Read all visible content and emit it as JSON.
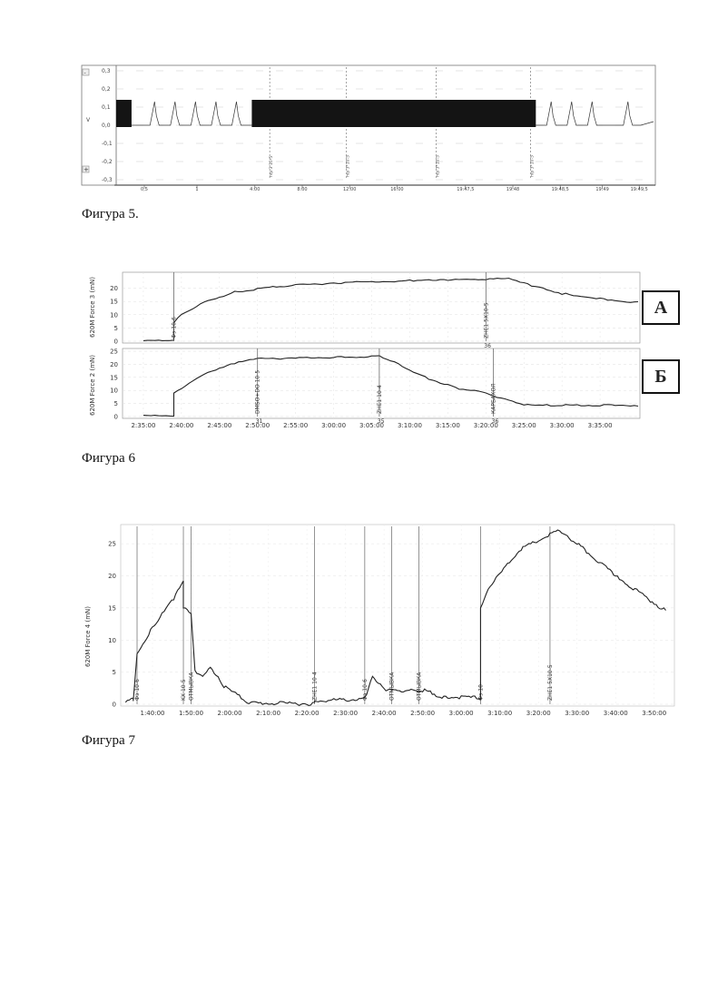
{
  "figure5": {
    "caption": "Фигура 5.",
    "ylim": [
      -0.3,
      0.3
    ],
    "ytick_labels": [
      "0,3",
      "0,2",
      "0,1",
      "0,0",
      "-0,1",
      "-0,2",
      "-0,3"
    ],
    "ylabel": "V",
    "xtick_labels": [
      "0,5",
      "1",
      "4:00",
      "8:00",
      "12:00",
      "16:00",
      "19:47,5",
      "19:48",
      "19:48,5",
      "19:49",
      "19:49,5"
    ],
    "marker_labels": [
      "mp 3 10-5",
      "mp 3*10-5",
      "mp 3*10-5",
      "mp 3*10-5"
    ],
    "plus_button": "+",
    "minus_button": "-"
  },
  "figure6": {
    "caption": "Фигура 6",
    "panel_a_letter": "А",
    "panel_b_letter": "Б",
    "xtick_labels": [
      "2:35:00",
      "2:40:00",
      "2:45:00",
      "2:50:00",
      "2:55:00",
      "3:00:00",
      "3:05:00",
      "3:10:00",
      "3:15:00",
      "3:20:00",
      "3:25:00",
      "3:30:00",
      "3:35:00"
    ]
  },
  "figure7": {
    "caption": "Фигура 7",
    "xtick_labels": [
      "1:40:00",
      "1:50:00",
      "2:00:00",
      "2:10:00",
      "2:20:00",
      "2:30:00",
      "2:40:00",
      "2:50:00",
      "3:00:00",
      "3:10:00",
      "3:20:00",
      "3:30:00",
      "3:40:00",
      "3:50:00"
    ]
  },
  "chart_data": [
    {
      "type": "line",
      "title": "",
      "xlabel": "",
      "ylabel": "V",
      "ylim": [
        -0.3,
        0.3
      ],
      "pulses": [
        {
          "t": 1.5,
          "v": 0.13
        },
        {
          "t": 2.3,
          "v": 0.13
        },
        {
          "t": 3.1,
          "v": 0.13
        },
        {
          "t": 3.9,
          "v": 0.13
        },
        {
          "t": 4.7,
          "v": 0.13
        }
      ],
      "dense_blocks": [
        {
          "from": 0.0,
          "to": 0.6,
          "v": 0.14
        },
        {
          "from": 5.3,
          "to": 16.4,
          "v": 0.14
        }
      ],
      "pulses_after": [
        {
          "t": 17.0,
          "v": 0.13
        },
        {
          "t": 17.8,
          "v": 0.13
        },
        {
          "t": 18.6,
          "v": 0.13
        },
        {
          "t": 20.0,
          "v": 0.13
        }
      ],
      "baseline": 0.0,
      "markers": [
        "mp 3 10-5",
        "mp 3*10-5",
        "mp 3*10-5",
        "mp 3*10-5"
      ]
    },
    {
      "type": "line",
      "title": "",
      "ylabel": "620M Force 3 (mN)",
      "ylim": [
        0,
        25
      ],
      "yticks": [
        0,
        5,
        10,
        15,
        20
      ],
      "x_minutes": [
        155,
        157,
        159,
        159,
        160,
        163,
        167,
        172,
        180,
        190,
        195,
        200,
        203,
        206,
        210,
        215,
        220
      ],
      "values": [
        0.2,
        0.2,
        0.2,
        7,
        10,
        15,
        18.5,
        20.5,
        22,
        22.8,
        23,
        23.4,
        23.5,
        21,
        18,
        16,
        14.6
      ],
      "annotations": [
        {
          "x_minutes": 159,
          "label": "Фэ 10-6"
        },
        {
          "x_minutes": 200,
          "label": "ZHE1 5X10-5",
          "number": "36"
        }
      ]
    },
    {
      "type": "line",
      "title": "",
      "ylabel": "620M Force 2 (mN)",
      "ylim": [
        0,
        25
      ],
      "yticks": [
        0,
        5,
        10,
        15,
        20,
        25
      ],
      "x_minutes": [
        155,
        157,
        159,
        159,
        160,
        163,
        167,
        170,
        175,
        180,
        186,
        188,
        192,
        196,
        200,
        201,
        203,
        205,
        210,
        215,
        220
      ],
      "values": [
        0.5,
        0.5,
        0.5,
        9,
        11,
        16,
        20.5,
        22,
        22.5,
        22.6,
        23,
        21,
        15,
        11,
        9,
        8,
        6,
        4.3,
        4.3,
        4.3,
        4.3
      ],
      "annotations": [
        {
          "x_minutes": 170,
          "label": "DMSO+DO 10-5",
          "number": "31"
        },
        {
          "x_minutes": 186,
          "label": "ZHE1 10-4",
          "number": "35"
        },
        {
          "x_minutes": 201,
          "label": "КАРБАХОЛ",
          "number": "36"
        }
      ]
    },
    {
      "type": "line",
      "title": "",
      "ylabel": "620M Force 4 (mN)",
      "ylim": [
        0,
        27
      ],
      "yticks": [
        0,
        5,
        10,
        15,
        20,
        25
      ],
      "x_minutes": [
        93,
        95,
        95,
        96,
        100,
        105,
        108,
        108,
        110,
        111,
        113,
        115,
        118,
        125,
        135,
        142,
        142,
        155,
        157,
        160,
        165,
        170,
        175,
        185,
        185,
        187,
        195,
        205,
        210,
        220,
        233
      ],
      "values": [
        0.3,
        0.8,
        0.5,
        8,
        12,
        16,
        19,
        15,
        14,
        5,
        4.5,
        6,
        3,
        0.2,
        0.1,
        0.1,
        0.5,
        0.8,
        4.5,
        2.2,
        2,
        2.2,
        1.2,
        1,
        15,
        18,
        24,
        27,
        25,
        20,
        14.5
      ],
      "annotations": [
        {
          "x_minutes": 96,
          "label": "Фэ 10-6"
        },
        {
          "x_minutes": 108,
          "label": "KX 10-5"
        },
        {
          "x_minutes": 110,
          "label": "ОТМЫВКА"
        },
        {
          "x_minutes": 142,
          "label": "ZHE1 10-4"
        },
        {
          "x_minutes": 155,
          "label": "Фэ 10-6"
        },
        {
          "x_minutes": 162,
          "label": "ОТМЫВКА"
        },
        {
          "x_minutes": 169,
          "label": "ОТМЫВКА"
        },
        {
          "x_minutes": 185,
          "label": "Фэ 10-"
        },
        {
          "x_minutes": 203,
          "label": "ZHE1 5X10-5"
        }
      ]
    }
  ]
}
